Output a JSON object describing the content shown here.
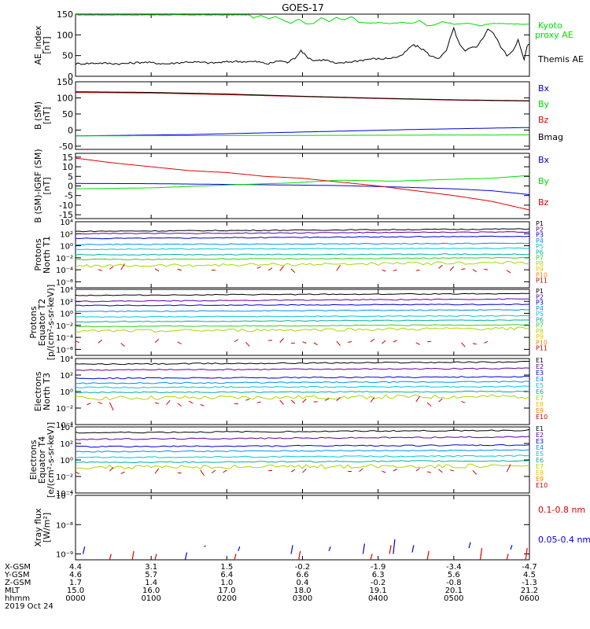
{
  "title": "GOES-17",
  "colors": {
    "black": "#000000",
    "red": "#e00000",
    "green": "#00dd00",
    "blue": "#0000dd",
    "cyan": "#00c8dc",
    "teal": "#00b0a0",
    "lime": "#30d020",
    "yellowgreen": "#a8d800",
    "gold": "#f0c000",
    "orange": "#ff8000",
    "darkred": "#cc0000",
    "purple": "#6000a0",
    "navy": "#000080"
  },
  "chart_data": [
    {
      "type": "line",
      "ylabel": "AE_index [nT]",
      "ylim": [
        0,
        150
      ],
      "yticks": [
        "0",
        "50",
        "100",
        "150"
      ],
      "legend": [
        "Kyoto proxy AE",
        "Themis AE"
      ],
      "series": [
        {
          "name": "Kyoto proxy AE",
          "color": "#00dd00",
          "points": [
            [
              0,
              148
            ],
            [
              1.5,
              148
            ],
            [
              2.3,
              148
            ],
            [
              2.35,
              140
            ],
            [
              2.45,
              147
            ],
            [
              2.55,
              140
            ],
            [
              2.65,
              144
            ],
            [
              2.75,
              135
            ],
            [
              2.85,
              128
            ],
            [
              2.95,
              138
            ],
            [
              3.05,
              126
            ],
            [
              3.15,
              128
            ],
            [
              3.25,
              142
            ],
            [
              3.35,
              132
            ],
            [
              3.45,
              142
            ],
            [
              3.55,
              136
            ],
            [
              3.65,
              144
            ],
            [
              3.75,
              130
            ],
            [
              3.9,
              128
            ],
            [
              4.0,
              130
            ],
            [
              4.15,
              127
            ],
            [
              4.3,
              130
            ],
            [
              4.45,
              128
            ],
            [
              4.55,
              134
            ],
            [
              4.65,
              122
            ],
            [
              4.75,
              124
            ],
            [
              4.85,
              132
            ],
            [
              5.0,
              126
            ],
            [
              5.2,
              128
            ],
            [
              5.35,
              122
            ],
            [
              5.45,
              126
            ],
            [
              5.6,
              128
            ],
            [
              5.8,
              126
            ],
            [
              6.0,
              126
            ]
          ]
        },
        {
          "name": "Themis AE",
          "color": "#000000",
          "points": [
            [
              0,
              30
            ],
            [
              0.3,
              32
            ],
            [
              0.6,
              30
            ],
            [
              0.9,
              34
            ],
            [
              1.2,
              30
            ],
            [
              1.5,
              35
            ],
            [
              1.8,
              32
            ],
            [
              2.1,
              36
            ],
            [
              2.4,
              35
            ],
            [
              2.55,
              30
            ],
            [
              2.7,
              38
            ],
            [
              2.8,
              33
            ],
            [
              2.9,
              44
            ],
            [
              2.98,
              63
            ],
            [
              3.05,
              48
            ],
            [
              3.15,
              38
            ],
            [
              3.3,
              40
            ],
            [
              3.45,
              30
            ],
            [
              3.6,
              34
            ],
            [
              3.75,
              38
            ],
            [
              3.9,
              42
            ],
            [
              4.05,
              42
            ],
            [
              4.2,
              45
            ],
            [
              4.3,
              48
            ],
            [
              4.38,
              62
            ],
            [
              4.45,
              75
            ],
            [
              4.52,
              72
            ],
            [
              4.6,
              64
            ],
            [
              4.7,
              48
            ],
            [
              4.8,
              44
            ],
            [
              4.9,
              60
            ],
            [
              4.95,
              90
            ],
            [
              5.0,
              115
            ],
            [
              5.03,
              100
            ],
            [
              5.08,
              75
            ],
            [
              5.15,
              60
            ],
            [
              5.22,
              68
            ],
            [
              5.3,
              72
            ],
            [
              5.38,
              90
            ],
            [
              5.45,
              115
            ],
            [
              5.5,
              108
            ],
            [
              5.55,
              96
            ],
            [
              5.62,
              72
            ],
            [
              5.7,
              50
            ],
            [
              5.78,
              62
            ],
            [
              5.85,
              88
            ],
            [
              5.9,
              56
            ],
            [
              5.93,
              40
            ],
            [
              5.97,
              72
            ],
            [
              6.0,
              78
            ]
          ]
        }
      ]
    },
    {
      "type": "line",
      "ylabel": "B (SM) [nT]",
      "ylim": [
        -60,
        150
      ],
      "yticks": [
        "-50",
        "0",
        "50",
        "100",
        "150"
      ],
      "legend": [
        "Bx",
        "By",
        "Bz",
        "Bmag"
      ],
      "series": [
        {
          "name": "Bx",
          "color": "#0000dd",
          "points": [
            [
              0,
              -18
            ],
            [
              1.5,
              -14
            ],
            [
              3,
              -6
            ],
            [
              4.5,
              2
            ],
            [
              6,
              8
            ]
          ]
        },
        {
          "name": "By",
          "color": "#00dd00",
          "points": [
            [
              0,
              -18
            ],
            [
              2,
              -17
            ],
            [
              4,
              -16
            ],
            [
              6,
              -15
            ]
          ]
        },
        {
          "name": "Bz",
          "color": "#e00000",
          "points": [
            [
              0,
              117
            ],
            [
              1,
              115
            ],
            [
              2,
              110
            ],
            [
              3,
              104
            ],
            [
              4,
              98
            ],
            [
              5,
              93
            ],
            [
              6,
              90
            ]
          ]
        },
        {
          "name": "Bmag",
          "color": "#000000",
          "points": [
            [
              0,
              119
            ],
            [
              1,
              117
            ],
            [
              2,
              112
            ],
            [
              3,
              105
            ],
            [
              4,
              99
            ],
            [
              5,
              94
            ],
            [
              6,
              91
            ]
          ]
        }
      ]
    },
    {
      "type": "line",
      "ylabel": "B (SM)-IGRF (SM) [nT]",
      "ylim": [
        -17,
        17
      ],
      "yticks": [
        "-15",
        "-10",
        "-5",
        "0",
        "5",
        "10",
        "15"
      ],
      "legend": [
        "Bx",
        "By",
        "Bz"
      ],
      "series": [
        {
          "name": "Bx",
          "color": "#0000dd",
          "points": [
            [
              0,
              1.3
            ],
            [
              1,
              1.2
            ],
            [
              2,
              0.8
            ],
            [
              2.8,
              0.5
            ],
            [
              3.5,
              0.2
            ],
            [
              4.2,
              -0.5
            ],
            [
              5,
              -1.5
            ],
            [
              5.5,
              -2.5
            ],
            [
              6,
              -4.5
            ]
          ]
        },
        {
          "name": "By",
          "color": "#00dd00",
          "points": [
            [
              0,
              -1.5
            ],
            [
              1,
              -1
            ],
            [
              2,
              0.5
            ],
            [
              2.8,
              1.5
            ],
            [
              3.5,
              3
            ],
            [
              4.2,
              2.5
            ],
            [
              5,
              3.5
            ],
            [
              5.5,
              4
            ],
            [
              6,
              5.5
            ]
          ]
        },
        {
          "name": "Bz",
          "color": "#e00000",
          "points": [
            [
              0,
              14.5
            ],
            [
              0.5,
              12
            ],
            [
              1,
              10
            ],
            [
              1.5,
              8
            ],
            [
              2,
              7
            ],
            [
              2.5,
              5
            ],
            [
              3,
              4
            ],
            [
              3.5,
              2
            ],
            [
              4,
              0
            ],
            [
              4.5,
              -2.5
            ],
            [
              5,
              -5
            ],
            [
              5.5,
              -8
            ],
            [
              6,
              -12.5
            ]
          ]
        }
      ]
    },
    {
      "type": "line",
      "ylabel": "Protons North T1",
      "log_scale": true,
      "ylim_exp": [
        -7,
        4
      ],
      "yticks": [
        "10⁴",
        "10²",
        "10⁰",
        "10⁻²",
        "10⁻⁴",
        "10⁻⁶"
      ],
      "legend": [
        "P1",
        "P2",
        "P3",
        "P4",
        "P5",
        "P6",
        "P7",
        "P8",
        "P9",
        "P10",
        "P11"
      ],
      "legend_colors": [
        "#000000",
        "#6000a0",
        "#0000dd",
        "#0090ff",
        "#00c8dc",
        "#00b0a0",
        "#30d020",
        "#a8d800",
        "#f0c000",
        "#ff8000",
        "#cc0000"
      ],
      "levels_log": [
        [
          2.4,
          2.8
        ],
        [
          2.0,
          2.3
        ],
        [
          1.2,
          1.6
        ],
        [
          0.2,
          0.4
        ],
        [
          -0.6,
          -0.4
        ],
        [
          -1.5,
          -1.4
        ],
        [
          -2.3,
          -2.0
        ],
        [
          -3.4,
          -2.8
        ],
        [
          -4.0,
          -4.0
        ]
      ]
    },
    {
      "type": "line",
      "ylabel": "Protons Equator T2 [p/(cm²-s-sr-keV)]",
      "log_scale": true,
      "ylim_exp": [
        -7,
        4
      ],
      "yticks": [
        "10⁴",
        "10²",
        "10⁰",
        "10⁻²",
        "10⁻⁴",
        "10⁻⁶"
      ],
      "legend": [
        "P1",
        "P2",
        "P3",
        "P4",
        "P5",
        "P6",
        "P7",
        "P8",
        "P9",
        "P10",
        "P11"
      ],
      "legend_colors": [
        "#000000",
        "#6000a0",
        "#0000dd",
        "#0090ff",
        "#00c8dc",
        "#00b0a0",
        "#30d020",
        "#a8d800",
        "#f0c000",
        "#ff8000",
        "#cc0000"
      ],
      "levels_log": [
        [
          3.0,
          3.3
        ],
        [
          2.0,
          2.4
        ],
        [
          1.3,
          1.5
        ],
        [
          0.3,
          0.6
        ],
        [
          -0.6,
          -0.4
        ],
        [
          -1.4,
          -1.1
        ],
        [
          -2.2,
          -1.9
        ],
        [
          -3.0,
          -2.5
        ],
        [
          -4.8,
          -4.8
        ]
      ]
    },
    {
      "type": "line",
      "ylabel": "Electrons North T3",
      "log_scale": true,
      "ylim_exp": [
        -4,
        4
      ],
      "yticks": [
        "10⁴",
        "10²",
        "10⁰",
        "10⁻²",
        "10⁻⁴"
      ],
      "legend": [
        "E1",
        "E2",
        "E3",
        "E4",
        "E5",
        "E6",
        "E7",
        "E8",
        "E9",
        "E10"
      ],
      "legend_colors": [
        "#000000",
        "#6000a0",
        "#0000dd",
        "#0090ff",
        "#00c8dc",
        "#00b0a0",
        "#a8d800",
        "#f0c000",
        "#ff8000",
        "#cc0000"
      ],
      "levels_log": [
        [
          3.3,
          3.6
        ],
        [
          2.6,
          2.8
        ],
        [
          1.6,
          1.8
        ],
        [
          1.0,
          1.2
        ],
        [
          0.5,
          0.6
        ],
        [
          -0.1,
          0.0
        ],
        [
          -0.8,
          -0.6
        ],
        [
          -1.5,
          -1.0
        ]
      ]
    },
    {
      "type": "line",
      "ylabel": "Electrons Equator T4 [e/(cm²-s-sr-keV)]",
      "log_scale": true,
      "ylim_exp": [
        -4,
        4
      ],
      "yticks": [
        "10⁴",
        "10²",
        "10⁰",
        "10⁻²",
        "10⁻⁴"
      ],
      "legend": [
        "E1",
        "E2",
        "E3",
        "E4",
        "E5",
        "E6",
        "E7",
        "E8",
        "E9",
        "E10"
      ],
      "legend_colors": [
        "#000000",
        "#6000a0",
        "#0000dd",
        "#0090ff",
        "#00c8dc",
        "#00b0a0",
        "#a8d800",
        "#f0c000",
        "#ff8000",
        "#cc0000"
      ],
      "levels_log": [
        [
          3.3,
          3.6
        ],
        [
          2.5,
          2.8
        ],
        [
          1.6,
          1.8
        ],
        [
          1.0,
          1.2
        ],
        [
          0.3,
          0.5
        ],
        [
          -0.3,
          -0.1
        ],
        [
          -0.9,
          -0.7
        ],
        [
          -1.5,
          -1.2
        ]
      ]
    },
    {
      "type": "scatter",
      "ylabel": "Xray flux [W/m²]",
      "log_scale": true,
      "ylim_exp": [
        -9.2,
        -7
      ],
      "yticks": [
        "10⁻⁷",
        "10⁻⁸",
        "10⁻⁹"
      ],
      "legend": [
        "0.1-0.8 nm",
        "0.05-0.4 nm"
      ],
      "series": [
        {
          "name": "0.1-0.8 nm",
          "color": "#e00000",
          "segments": [
            [
              0.45,
              -9.2,
              -9.0
            ],
            [
              0.75,
              -9.2,
              -8.9
            ],
            [
              1.05,
              -9.2,
              -9.0
            ],
            [
              2.1,
              -9.2,
              -9.0
            ],
            [
              2.95,
              -9.2,
              -8.9
            ],
            [
              3.9,
              -9.2,
              -9.0
            ],
            [
              4.15,
              -9.0,
              -8.7
            ],
            [
              4.65,
              -9.2,
              -8.9
            ],
            [
              5.35,
              -9.2,
              -8.8
            ],
            [
              5.7,
              -9.2,
              -9.0
            ],
            [
              5.95,
              -9.2,
              -8.8
            ]
          ]
        },
        {
          "name": "0.05-0.4 nm",
          "color": "#0000dd",
          "segments": [
            [
              0.1,
              -9.0,
              -8.75
            ],
            [
              1.45,
              -9.2,
              -8.95
            ],
            [
              1.7,
              -8.75,
              -8.72
            ],
            [
              2.15,
              -8.9,
              -8.75
            ],
            [
              2.85,
              -9.0,
              -8.7
            ],
            [
              3.35,
              -8.9,
              -8.75
            ],
            [
              3.8,
              -9.0,
              -8.65
            ],
            [
              4.2,
              -9.0,
              -8.5
            ],
            [
              4.45,
              -8.95,
              -8.7
            ],
            [
              5.2,
              -8.8,
              -8.6
            ],
            [
              5.75,
              -8.85,
              -8.7
            ]
          ]
        }
      ]
    }
  ],
  "x_axis": {
    "row_labels": [
      "X-GSM",
      "Y-GSM",
      "Z-GSM",
      "MLT",
      "hhmm"
    ],
    "date": "2019 Oct 24",
    "columns": [
      [
        "4.4",
        "4.6",
        "1.7",
        "15.0",
        "0000"
      ],
      [
        "3.1",
        "5.7",
        "1.4",
        "16.0",
        "0100"
      ],
      [
        "1.5",
        "6.4",
        "1.0",
        "17.0",
        "0200"
      ],
      [
        "-0.2",
        "6.6",
        "0.4",
        "18.0",
        "0300"
      ],
      [
        "-1.9",
        "6.3",
        "-0.2",
        "19.1",
        "0400"
      ],
      [
        "-3.4",
        "5.6",
        "-0.8",
        "20.1",
        "0500"
      ],
      [
        "-4.7",
        "4.5",
        "-1.3",
        "21.2",
        "0600"
      ]
    ]
  }
}
